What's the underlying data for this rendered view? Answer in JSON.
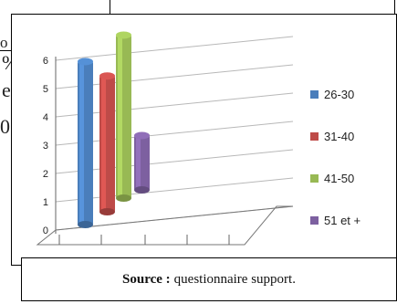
{
  "document": {
    "edge_fragments": [
      "o",
      "%",
      "e",
      "0"
    ],
    "source_label": "Source :",
    "source_text": "questionnaire support."
  },
  "chart_data": {
    "type": "bar",
    "three_d": true,
    "categories": [
      "26-30",
      "31-40",
      "41-50",
      "51 et +"
    ],
    "values": [
      6,
      5,
      6,
      2
    ],
    "colors": [
      "#4a7ebb",
      "#be4b48",
      "#98b954",
      "#7d60a0"
    ],
    "title": "",
    "xlabel": "",
    "ylabel": "",
    "ylim": [
      0,
      6
    ],
    "yticks": [
      "0",
      "1",
      "2",
      "3",
      "4",
      "5",
      "6"
    ],
    "grid": true,
    "legend_position": "right",
    "legend": [
      "26-30",
      "31-40",
      "41-50",
      "51 et +"
    ]
  }
}
